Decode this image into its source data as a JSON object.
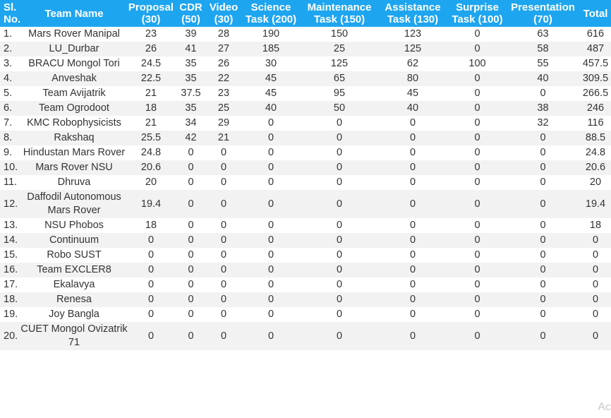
{
  "headers": [
    "Sl. No.",
    "Team Name",
    "Proposal (30)",
    "CDR (50)",
    "Video (30)",
    "Science Task (200)",
    "Maintenance Task (150)",
    "Assistance Task (130)",
    "Surprise Task (100)",
    "Presentation (70)",
    "Total"
  ],
  "rows": [
    [
      "1.",
      "Mars Rover Manipal",
      "23",
      "39",
      "28",
      "190",
      "150",
      "123",
      "0",
      "63",
      "616"
    ],
    [
      "2.",
      "LU_Durbar",
      "26",
      "41",
      "27",
      "185",
      "25",
      "125",
      "0",
      "58",
      "487"
    ],
    [
      "3.",
      "BRACU Mongol Tori",
      "24.5",
      "35",
      "26",
      "30",
      "125",
      "62",
      "100",
      "55",
      "457.5"
    ],
    [
      "4.",
      "Anveshak",
      "22.5",
      "35",
      "22",
      "45",
      "65",
      "80",
      "0",
      "40",
      "309.5"
    ],
    [
      "5.",
      "Team Avijatrik",
      "21",
      "37.5",
      "23",
      "45",
      "95",
      "45",
      "0",
      "0",
      "266.5"
    ],
    [
      "6.",
      "Team Ogrodoot",
      "18",
      "35",
      "25",
      "40",
      "50",
      "40",
      "0",
      "38",
      "246"
    ],
    [
      "7.",
      "KMC Robophysicists",
      "21",
      "34",
      "29",
      "0",
      "0",
      "0",
      "0",
      "32",
      "116"
    ],
    [
      "8.",
      "Rakshaq",
      "25.5",
      "42",
      "21",
      "0",
      "0",
      "0",
      "0",
      "0",
      "88.5"
    ],
    [
      "9.",
      "Hindustan Mars Rover",
      "24.8",
      "0",
      "0",
      "0",
      "0",
      "0",
      "0",
      "0",
      "24.8"
    ],
    [
      "10.",
      "Mars Rover NSU",
      "20.6",
      "0",
      "0",
      "0",
      "0",
      "0",
      "0",
      "0",
      "20.6"
    ],
    [
      "11.",
      "Dhruva",
      "20",
      "0",
      "0",
      "0",
      "0",
      "0",
      "0",
      "0",
      "20"
    ],
    [
      "12.",
      "Daffodil Autonomous Mars Rover",
      "19.4",
      "0",
      "0",
      "0",
      "0",
      "0",
      "0",
      "0",
      "19.4"
    ],
    [
      "13.",
      "NSU Phobos",
      "18",
      "0",
      "0",
      "0",
      "0",
      "0",
      "0",
      "0",
      "18"
    ],
    [
      "14.",
      "Continuum",
      "0",
      "0",
      "0",
      "0",
      "0",
      "0",
      "0",
      "0",
      "0"
    ],
    [
      "15.",
      "Robo SUST",
      "0",
      "0",
      "0",
      "0",
      "0",
      "0",
      "0",
      "0",
      "0"
    ],
    [
      "16.",
      "Team EXCLER8",
      "0",
      "0",
      "0",
      "0",
      "0",
      "0",
      "0",
      "0",
      "0"
    ],
    [
      "17.",
      "Ekalavya",
      "0",
      "0",
      "0",
      "0",
      "0",
      "0",
      "0",
      "0",
      "0"
    ],
    [
      "18.",
      "Renesa",
      "0",
      "0",
      "0",
      "0",
      "0",
      "0",
      "0",
      "0",
      "0"
    ],
    [
      "19.",
      "Joy Bangla",
      "0",
      "0",
      "0",
      "0",
      "0",
      "0",
      "0",
      "0",
      "0"
    ],
    [
      "20.",
      "CUET Mongol Ovizatrik 71",
      "0",
      "0",
      "0",
      "0",
      "0",
      "0",
      "0",
      "0",
      "0"
    ]
  ],
  "watermark": "Ac"
}
